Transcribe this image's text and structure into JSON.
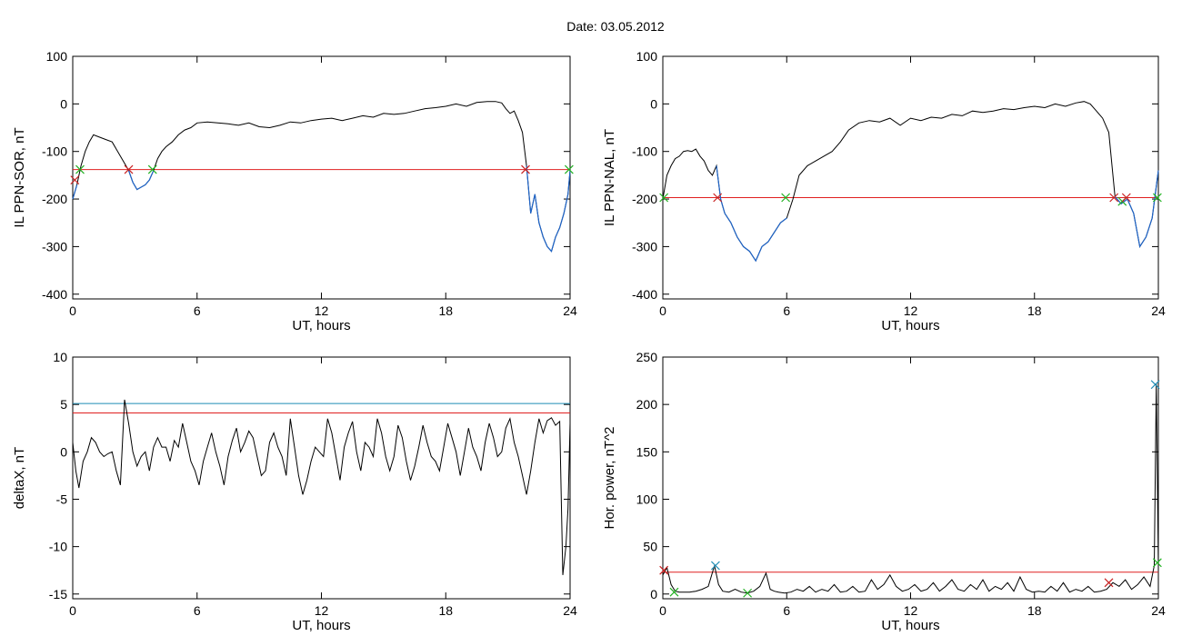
{
  "figure": {
    "title": "Date:  03.05.2012"
  },
  "chart_data": [
    {
      "id": "sor",
      "type": "line",
      "xlabel": "UT, hours",
      "ylabel": "IL PPN-SOR, nT",
      "xlim": [
        0,
        24
      ],
      "ylim": [
        -410,
        100
      ],
      "xticks": [
        0,
        6,
        12,
        18,
        24
      ],
      "yticks": [
        -400,
        -300,
        -200,
        -100,
        0,
        100
      ],
      "colors": {
        "line": "#000000",
        "segment": "#1e64c8",
        "threshold": "#e02020",
        "cross_red": "#c82020",
        "cross_green": "#20b020"
      },
      "series": [
        {
          "x": [
            0,
            0.2,
            0.4,
            0.6,
            0.8,
            1.0,
            1.3,
            1.6,
            1.9,
            2.1,
            2.3,
            2.5,
            2.7,
            2.9,
            3.1,
            3.3,
            3.5,
            3.7,
            3.9,
            4.1,
            4.3,
            4.5,
            4.8,
            5.1,
            5.4,
            5.7,
            6,
            6.5,
            7,
            7.5,
            8,
            8.5,
            9,
            9.5,
            10,
            10.5,
            11,
            11.5,
            12,
            12.5,
            13,
            13.5,
            14,
            14.5,
            15,
            15.5,
            16,
            16.5,
            17,
            17.5,
            18,
            18.5,
            19,
            19.5,
            20,
            20.4,
            20.7,
            20.9,
            21.1,
            21.3,
            21.5,
            21.7,
            21.9,
            22.1,
            22.3,
            22.5,
            22.7,
            22.9,
            23.1,
            23.3,
            23.5,
            23.7,
            23.9,
            24
          ],
          "y": [
            -200,
            -170,
            -130,
            -100,
            -80,
            -65,
            -70,
            -75,
            -80,
            -95,
            -110,
            -125,
            -140,
            -165,
            -180,
            -175,
            -170,
            -160,
            -140,
            -115,
            -100,
            -90,
            -80,
            -65,
            -55,
            -50,
            -40,
            -38,
            -40,
            -42,
            -45,
            -40,
            -48,
            -50,
            -45,
            -38,
            -40,
            -35,
            -32,
            -30,
            -35,
            -30,
            -25,
            -28,
            -20,
            -22,
            -20,
            -15,
            -10,
            -8,
            -5,
            0,
            -5,
            3,
            5,
            5,
            2,
            -10,
            -20,
            -15,
            -35,
            -60,
            -130,
            -230,
            -190,
            -250,
            -280,
            -300,
            -310,
            -280,
            -260,
            -230,
            -190,
            -140
          ],
          "segments": [
            [
              0,
              0.3
            ],
            [
              2.7,
              4.0
            ],
            [
              21.9,
              24
            ]
          ]
        }
      ],
      "threshold": -138,
      "markers": [
        {
          "x": 0.1,
          "y": -160,
          "color": "cross_red"
        },
        {
          "x": 0.35,
          "y": -138,
          "color": "cross_green"
        },
        {
          "x": 2.7,
          "y": -138,
          "color": "cross_red"
        },
        {
          "x": 3.85,
          "y": -138,
          "color": "cross_green"
        },
        {
          "x": 21.85,
          "y": -138,
          "color": "cross_red"
        },
        {
          "x": 23.95,
          "y": -138,
          "color": "cross_green"
        }
      ]
    },
    {
      "id": "nal",
      "type": "line",
      "xlabel": "UT, hours",
      "ylabel": "IL PPN-NAL, nT",
      "xlim": [
        0,
        24
      ],
      "ylim": [
        -410,
        100
      ],
      "xticks": [
        0,
        6,
        12,
        18,
        24
      ],
      "yticks": [
        -400,
        -300,
        -200,
        -100,
        0,
        100
      ],
      "colors": {
        "line": "#000000",
        "segment": "#1e64c8",
        "threshold": "#e02020",
        "cross_red": "#c82020",
        "cross_green": "#20b020"
      },
      "series": [
        {
          "x": [
            0,
            0.2,
            0.4,
            0.6,
            0.8,
            1.0,
            1.2,
            1.4,
            1.6,
            1.8,
            2.0,
            2.2,
            2.4,
            2.6,
            2.8,
            3.0,
            3.3,
            3.6,
            3.9,
            4.2,
            4.5,
            4.8,
            5.1,
            5.4,
            5.7,
            6.0,
            6.3,
            6.6,
            7.0,
            7.4,
            7.8,
            8.2,
            8.6,
            9.0,
            9.5,
            10,
            10.5,
            11,
            11.5,
            12,
            12.5,
            13,
            13.5,
            14,
            14.5,
            15,
            15.5,
            16,
            16.5,
            17,
            17.5,
            18,
            18.5,
            19,
            19.5,
            20,
            20.4,
            20.7,
            21.0,
            21.3,
            21.6,
            21.9,
            22.2,
            22.5,
            22.8,
            23.1,
            23.4,
            23.7,
            24
          ],
          "y": [
            -200,
            -150,
            -130,
            -115,
            -110,
            -100,
            -98,
            -100,
            -95,
            -110,
            -120,
            -140,
            -150,
            -130,
            -200,
            -230,
            -250,
            -280,
            -300,
            -310,
            -330,
            -300,
            -290,
            -270,
            -250,
            -240,
            -200,
            -150,
            -130,
            -120,
            -110,
            -100,
            -80,
            -55,
            -40,
            -35,
            -38,
            -30,
            -45,
            -30,
            -35,
            -28,
            -30,
            -22,
            -25,
            -15,
            -18,
            -15,
            -10,
            -12,
            -8,
            -5,
            -8,
            0,
            -5,
            2,
            5,
            0,
            -15,
            -30,
            -60,
            -195,
            -210,
            -200,
            -230,
            -300,
            -280,
            -240,
            -140
          ],
          "segments": [
            [
              0,
              0.1
            ],
            [
              2.6,
              6.0
            ],
            [
              21.8,
              24
            ]
          ]
        }
      ],
      "threshold": -197,
      "markers": [
        {
          "x": 0.05,
          "y": -197,
          "color": "cross_green"
        },
        {
          "x": 2.65,
          "y": -197,
          "color": "cross_red"
        },
        {
          "x": 5.95,
          "y": -197,
          "color": "cross_green"
        },
        {
          "x": 21.85,
          "y": -197,
          "color": "cross_red"
        },
        {
          "x": 22.25,
          "y": -205,
          "color": "cross_green"
        },
        {
          "x": 22.45,
          "y": -197,
          "color": "cross_red"
        },
        {
          "x": 23.95,
          "y": -197,
          "color": "cross_green"
        }
      ]
    },
    {
      "id": "deltax",
      "type": "line",
      "xlabel": "UT, hours",
      "ylabel": "deltaX, nT",
      "xlim": [
        0,
        24
      ],
      "ylim": [
        -15.5,
        10
      ],
      "xticks": [
        0,
        6,
        12,
        18,
        24
      ],
      "yticks": [
        -15,
        -10,
        -5,
        0,
        5,
        10
      ],
      "colors": {
        "line": "#000000",
        "threshold": "#e02020",
        "threshold2": "#1e8cb4"
      },
      "series": [
        {
          "x": [
            0,
            0.15,
            0.3,
            0.5,
            0.7,
            0.9,
            1.1,
            1.3,
            1.5,
            1.7,
            1.9,
            2.1,
            2.3,
            2.5,
            2.7,
            2.9,
            3.1,
            3.3,
            3.5,
            3.7,
            3.9,
            4.1,
            4.3,
            4.5,
            4.7,
            4.9,
            5.1,
            5.3,
            5.5,
            5.7,
            5.9,
            6.1,
            6.3,
            6.5,
            6.7,
            6.9,
            7.1,
            7.3,
            7.5,
            7.7,
            7.9,
            8.1,
            8.3,
            8.5,
            8.7,
            8.9,
            9.1,
            9.3,
            9.5,
            9.7,
            9.9,
            10.1,
            10.3,
            10.5,
            10.7,
            10.9,
            11.1,
            11.3,
            11.5,
            11.7,
            11.9,
            12.1,
            12.3,
            12.5,
            12.7,
            12.9,
            13.1,
            13.3,
            13.5,
            13.7,
            13.9,
            14.1,
            14.3,
            14.5,
            14.7,
            14.9,
            15.1,
            15.3,
            15.5,
            15.7,
            15.9,
            16.1,
            16.3,
            16.5,
            16.7,
            16.9,
            17.1,
            17.3,
            17.5,
            17.7,
            17.9,
            18.1,
            18.3,
            18.5,
            18.7,
            18.9,
            19.1,
            19.3,
            19.5,
            19.7,
            19.9,
            20.1,
            20.3,
            20.5,
            20.7,
            20.9,
            21.1,
            21.3,
            21.5,
            21.7,
            21.9,
            22.1,
            22.3,
            22.5,
            22.7,
            22.9,
            23.1,
            23.3,
            23.5,
            23.65,
            23.8,
            23.9,
            24
          ],
          "y": [
            1,
            -2,
            -3.8,
            -1,
            0,
            1.5,
            1,
            0,
            -0.5,
            -0.2,
            0,
            -2,
            -3.5,
            5.5,
            3,
            0,
            -1.5,
            -0.5,
            0,
            -2,
            0.5,
            1.5,
            0.5,
            0.5,
            -1,
            1.2,
            0.5,
            3,
            1,
            -1,
            -2,
            -3.5,
            -1,
            0.5,
            2,
            0,
            -1.5,
            -3.5,
            -0.5,
            1.2,
            2.5,
            0,
            1,
            2.2,
            1.5,
            -0.5,
            -2.5,
            -2,
            1,
            2,
            0.5,
            -0.5,
            -2.5,
            3.5,
            0.5,
            -2.5,
            -4.5,
            -3,
            -1,
            0.5,
            0,
            -0.5,
            3.5,
            2,
            -0.5,
            -3,
            0.5,
            2,
            3.2,
            0,
            -2,
            1,
            0.5,
            -0.5,
            3.5,
            2,
            -0.5,
            -2,
            -0.5,
            2.8,
            1.5,
            -1,
            -3,
            -1.5,
            0.5,
            2.8,
            1,
            -0.5,
            -1,
            -2,
            0.5,
            3,
            1.5,
            0,
            -2.5,
            0,
            2.5,
            0.5,
            -0.5,
            -2,
            1,
            3,
            1.5,
            -0.5,
            0,
            2.5,
            3.5,
            1,
            -0.5,
            -2.5,
            -4.5,
            -2,
            1,
            3.5,
            2,
            3.3,
            3.6,
            2.8,
            3.2,
            -13,
            -10,
            -6,
            3
          ]
        }
      ],
      "threshold": 4.1,
      "threshold2": 5.1
    },
    {
      "id": "power",
      "type": "line",
      "xlabel": "UT, hours",
      "ylabel": "Hor. power, nT^2",
      "xlim": [
        0,
        24
      ],
      "ylim": [
        -5,
        250
      ],
      "xticks": [
        0,
        6,
        12,
        18,
        24
      ],
      "yticks": [
        0,
        50,
        100,
        150,
        200,
        250
      ],
      "colors": {
        "line": "#000000",
        "threshold": "#e02020",
        "cross_red": "#c82020",
        "cross_green": "#20b020",
        "cross_blue": "#1e8cb4"
      },
      "series": [
        {
          "x": [
            0,
            0.2,
            0.4,
            0.6,
            0.8,
            1.0,
            1.3,
            1.6,
            1.9,
            2.2,
            2.5,
            2.7,
            2.9,
            3.2,
            3.5,
            3.8,
            4.1,
            4.4,
            4.7,
            5.0,
            5.2,
            5.4,
            5.6,
            5.9,
            6.2,
            6.5,
            6.8,
            7.1,
            7.4,
            7.7,
            8.0,
            8.3,
            8.6,
            8.9,
            9.2,
            9.5,
            9.8,
            10.1,
            10.4,
            10.7,
            11.0,
            11.3,
            11.6,
            11.9,
            12.2,
            12.5,
            12.8,
            13.1,
            13.4,
            13.7,
            14.0,
            14.3,
            14.6,
            14.9,
            15.2,
            15.5,
            15.8,
            16.1,
            16.4,
            16.7,
            17.0,
            17.3,
            17.6,
            17.9,
            18.2,
            18.5,
            18.8,
            19.1,
            19.4,
            19.7,
            20.0,
            20.3,
            20.6,
            20.9,
            21.2,
            21.5,
            21.8,
            22.1,
            22.4,
            22.7,
            23.0,
            23.3,
            23.6,
            23.8,
            23.9,
            24
          ],
          "y": [
            20,
            28,
            10,
            3,
            2,
            2,
            2,
            3,
            5,
            8,
            30,
            10,
            3,
            2,
            5,
            2,
            1,
            3,
            8,
            22,
            5,
            3,
            2,
            1,
            2,
            5,
            3,
            8,
            2,
            5,
            3,
            10,
            2,
            3,
            8,
            2,
            3,
            15,
            5,
            10,
            20,
            8,
            3,
            5,
            10,
            3,
            5,
            12,
            3,
            8,
            15,
            5,
            3,
            10,
            5,
            15,
            3,
            8,
            5,
            12,
            3,
            18,
            5,
            2,
            3,
            2,
            8,
            3,
            12,
            2,
            5,
            3,
            8,
            2,
            3,
            5,
            12,
            8,
            15,
            5,
            10,
            18,
            8,
            30,
            222,
            30
          ]
        }
      ],
      "threshold": 23,
      "markers": [
        {
          "x": 0.05,
          "y": 25,
          "color": "cross_red"
        },
        {
          "x": 0.55,
          "y": 2,
          "color": "cross_green"
        },
        {
          "x": 2.55,
          "y": 30,
          "color": "cross_blue"
        },
        {
          "x": 4.1,
          "y": 1,
          "color": "cross_green"
        },
        {
          "x": 21.6,
          "y": 12,
          "color": "cross_red"
        },
        {
          "x": 23.85,
          "y": 221,
          "color": "cross_blue"
        },
        {
          "x": 23.95,
          "y": 33,
          "color": "cross_green"
        }
      ]
    }
  ]
}
